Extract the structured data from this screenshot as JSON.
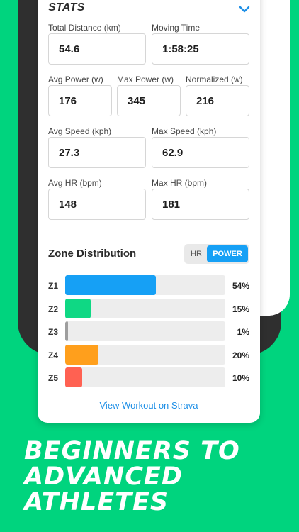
{
  "stats": {
    "title": "STATS",
    "fields": [
      {
        "label": "Total Distance (km)",
        "value": "54.6"
      },
      {
        "label": "Moving Time",
        "value": "1:58:25"
      },
      {
        "label": "Avg Power (w)",
        "value": "176"
      },
      {
        "label": "Max Power (w)",
        "value": "345"
      },
      {
        "label": "Normalized (w)",
        "value": "216"
      },
      {
        "label": "Avg Speed (kph)",
        "value": "27.3"
      },
      {
        "label": "Max Speed (kph)",
        "value": "62.9"
      },
      {
        "label": "Avg HR (bpm)",
        "value": "148"
      },
      {
        "label": "Max HR (bpm)",
        "value": "181"
      }
    ]
  },
  "zones": {
    "title": "Zone Distribution",
    "toggle": {
      "hr": "HR",
      "power": "POWER",
      "selected": "POWER"
    },
    "rows": [
      {
        "label": "Z1",
        "pct_text": "54%",
        "value": 54,
        "color": "#16a0f5"
      },
      {
        "label": "Z2",
        "pct_text": "15%",
        "value": 15,
        "color": "#0fd884"
      },
      {
        "label": "Z3",
        "pct_text": "1%",
        "value": 1,
        "color": "#9e9e9e"
      },
      {
        "label": "Z4",
        "pct_text": "20%",
        "value": 20,
        "color": "#ff9f1c"
      },
      {
        "label": "Z5",
        "pct_text": "10%",
        "value": 10,
        "color": "#ff6152"
      }
    ]
  },
  "link": {
    "label": "View Workout on Strava"
  },
  "headline": {
    "line1": "BEGINNERS TO",
    "line2": "ADVANCED",
    "line3": "ATHLETES"
  },
  "colors": {
    "background": "#00d47e",
    "accent": "#16a0f5"
  },
  "icons": {
    "collapse": "chevron-down-icon"
  }
}
